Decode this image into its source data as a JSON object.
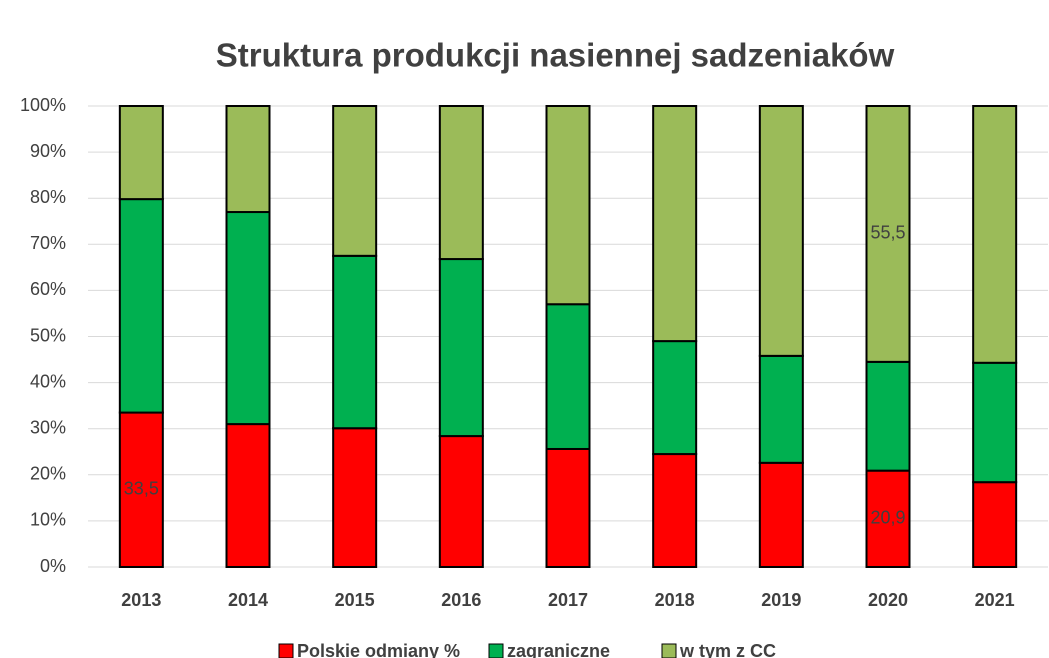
{
  "chart_data": {
    "type": "stacked_bar",
    "title": "Struktura produkcji nasiennej sadzeniaków",
    "categories": [
      "2013",
      "2014",
      "2015",
      "2016",
      "2017",
      "2018",
      "2019",
      "2020",
      "2021"
    ],
    "series": [
      {
        "name": "Polskie odmiany %",
        "color": "#ff0000",
        "values": [
          33.5,
          31.0,
          30.1,
          28.4,
          25.6,
          24.5,
          22.6,
          20.9,
          18.4
        ],
        "value_labels": [
          "33,5",
          null,
          null,
          null,
          null,
          null,
          null,
          "20,9",
          null
        ]
      },
      {
        "name": "zagraniczne",
        "color": "#00b050",
        "values": [
          46.3,
          46.0,
          37.4,
          38.4,
          31.4,
          24.5,
          23.2,
          23.6,
          25.9
        ]
      },
      {
        "name": "w tym z CC",
        "color": "#9bbb59",
        "values": [
          20.2,
          23.0,
          32.5,
          33.2,
          43.0,
          51.0,
          54.2,
          55.5,
          55.7
        ],
        "value_labels": [
          null,
          null,
          null,
          null,
          null,
          null,
          null,
          "55,5",
          null
        ]
      }
    ],
    "ylim": [
      0,
      100
    ],
    "yticks": [
      {
        "value": 0,
        "label": "0%"
      },
      {
        "value": 10,
        "label": "10%"
      },
      {
        "value": 20,
        "label": "20%"
      },
      {
        "value": 30,
        "label": "30%"
      },
      {
        "value": 40,
        "label": "40%"
      },
      {
        "value": 50,
        "label": "50%"
      },
      {
        "value": 60,
        "label": "60%"
      },
      {
        "value": 70,
        "label": "70%"
      },
      {
        "value": 80,
        "label": "80%"
      },
      {
        "value": 90,
        "label": "90%"
      },
      {
        "value": 100,
        "label": "100%"
      }
    ],
    "grid": true,
    "legend": "bottom"
  }
}
